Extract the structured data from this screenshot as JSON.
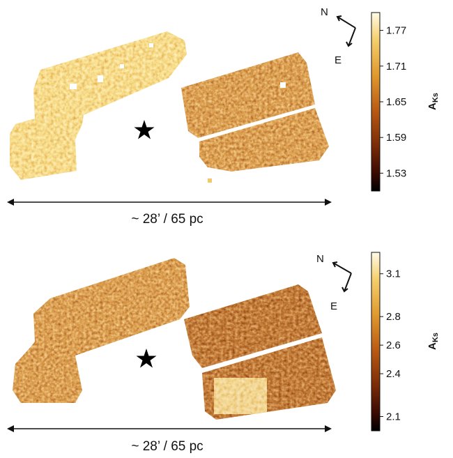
{
  "panels": [
    {
      "id": "top",
      "colorbar": {
        "label_main": "A",
        "label_sub": "Ks",
        "ticks": [
          "1.77",
          "1.71",
          "1.65",
          "1.59",
          "1.53"
        ],
        "tick_values": [
          1.77,
          1.71,
          1.65,
          1.59,
          1.53
        ],
        "vmin": 1.5,
        "vmax": 1.8
      },
      "compass": {
        "north": "N",
        "east": "E"
      },
      "scale_label": "~ 28’ / 65 pc",
      "map_tone": "bright"
    },
    {
      "id": "bottom",
      "colorbar": {
        "label_main": "A",
        "label_sub": "Ks",
        "ticks": [
          "3.1",
          "2.8",
          "2.6",
          "2.4",
          "2.1"
        ],
        "tick_values": [
          3.1,
          2.8,
          2.6,
          2.4,
          2.1
        ],
        "vmin": 2.0,
        "vmax": 3.25
      },
      "compass": {
        "north": "N",
        "east": "E"
      },
      "scale_label": "~ 28’ / 65 pc",
      "map_tone": "dark"
    }
  ],
  "colormap": {
    "name": "afmhot_r",
    "stops": [
      "#000000",
      "#3a0a02",
      "#7a2a06",
      "#b85a14",
      "#e0992e",
      "#f5cf6e",
      "#fffbe6"
    ]
  }
}
